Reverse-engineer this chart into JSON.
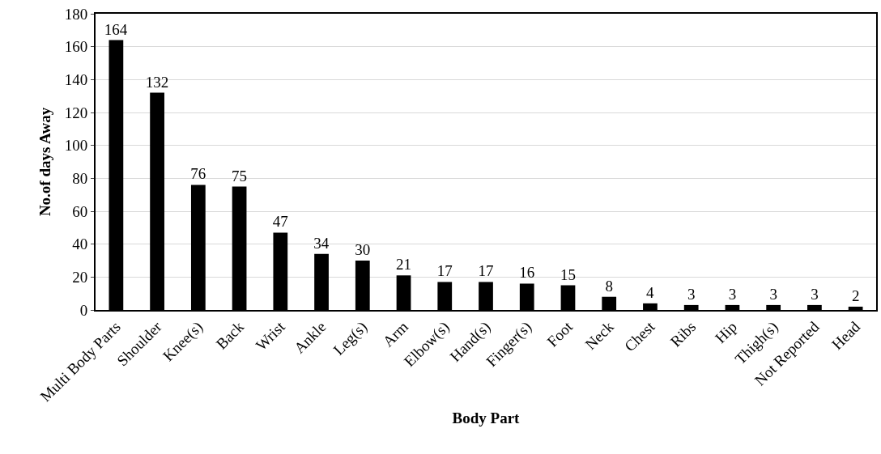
{
  "chart_data": {
    "type": "bar",
    "xlabel": "Body Part",
    "ylabel": "No.of days Away",
    "categories": [
      "Multi Body Parts",
      "Shoulder",
      "Knee(s)",
      "Back",
      "Wrist",
      "Ankle",
      "Leg(s)",
      "Arm",
      "Elbow(s)",
      "Hand(s)",
      "Finger(s)",
      "Foot",
      "Neck",
      "Chest",
      "Ribs",
      "Hip",
      "Thigh(s)",
      "Not Reported",
      "Head"
    ],
    "values": [
      164,
      132,
      76,
      75,
      47,
      34,
      30,
      21,
      17,
      17,
      16,
      15,
      8,
      4,
      3,
      3,
      3,
      3,
      2
    ],
    "color": "#000000",
    "ylim": [
      0,
      180
    ],
    "yticks": [
      0,
      20,
      40,
      60,
      80,
      100,
      120,
      140,
      160,
      180
    ],
    "grid": "y",
    "data_labels": true,
    "legend": false
  }
}
